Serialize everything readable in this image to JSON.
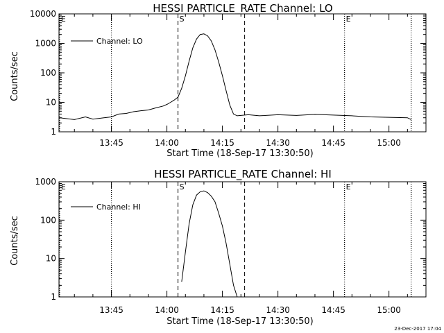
{
  "footer": {
    "timestamp": "23-Dec-2017 17:04"
  },
  "chart_data": [
    {
      "type": "line",
      "title": "HESSI PARTICLE_RATE Channel: LO",
      "xlabel": "Start Time (18-Sep-17 13:30:50)",
      "ylabel": "Counts/sec",
      "y_scale": "log",
      "ylim": [
        1,
        10000
      ],
      "y_tick_values": [
        1,
        10,
        100,
        1000,
        10000
      ],
      "y_tick_labels": [
        "1",
        "10",
        "100",
        "1000",
        "10000"
      ],
      "xlim": [
        "13:30:50",
        "15:10:00"
      ],
      "x_tick_values": [
        "13:45",
        "14:00",
        "14:15",
        "14:30",
        "14:45",
        "15:00"
      ],
      "x_tick_labels": [
        "13:45",
        "14:00",
        "14:15",
        "14:30",
        "14:45",
        "15:00"
      ],
      "legend": {
        "placement": "top-left",
        "entries": [
          "Channel: LO"
        ]
      },
      "markers": [
        {
          "label": "E",
          "time": "13:31",
          "style": "dotted"
        },
        {
          "label": "",
          "time": "13:45",
          "style": "dotted"
        },
        {
          "label": "S",
          "time": "14:03",
          "style": "dashed"
        },
        {
          "label": "",
          "time": "14:21",
          "style": "dashed"
        },
        {
          "label": "E",
          "time": "14:48",
          "style": "dotted"
        },
        {
          "label": "",
          "time": "15:06",
          "style": "dotted"
        }
      ],
      "series": [
        {
          "name": "Channel: LO",
          "x": [
            "13:31",
            "13:35",
            "13:38",
            "13:40",
            "13:43",
            "13:45",
            "13:47",
            "13:49",
            "13:51",
            "13:53",
            "13:55",
            "13:57",
            "13:59",
            "14:00",
            "14:01",
            "14:02",
            "14:03",
            "14:04",
            "14:05",
            "14:06",
            "14:07",
            "14:08",
            "14:09",
            "14:10",
            "14:11",
            "14:12",
            "14:13",
            "14:14",
            "14:15",
            "14:16",
            "14:17",
            "14:18",
            "14:19",
            "14:20",
            "14:22",
            "14:25",
            "14:30",
            "14:35",
            "14:40",
            "14:45",
            "14:50",
            "14:55",
            "15:00",
            "15:05",
            "15:06"
          ],
          "y": [
            3,
            2.6,
            3.2,
            2.7,
            3,
            3.2,
            4,
            4.2,
            4.8,
            5.2,
            5.5,
            6.5,
            7.5,
            8.5,
            10,
            12,
            15,
            30,
            80,
            250,
            700,
            1400,
            2000,
            2100,
            1800,
            1200,
            600,
            230,
            80,
            25,
            8,
            4,
            3.5,
            3.6,
            3.8,
            3.5,
            3.8,
            3.6,
            3.9,
            3.7,
            3.5,
            3.2,
            3.1,
            3,
            2.6
          ]
        }
      ]
    },
    {
      "type": "line",
      "title": "HESSI PARTICLE_RATE Channel: HI",
      "xlabel": "Start Time (18-Sep-17 13:30:50)",
      "ylabel": "Counts/sec",
      "y_scale": "log",
      "ylim": [
        1,
        1000
      ],
      "y_tick_values": [
        1,
        10,
        100,
        1000
      ],
      "y_tick_labels": [
        "1",
        "10",
        "100",
        "1000"
      ],
      "xlim": [
        "13:30:50",
        "15:10:00"
      ],
      "x_tick_values": [
        "13:45",
        "14:00",
        "14:15",
        "14:30",
        "14:45",
        "15:00"
      ],
      "x_tick_labels": [
        "13:45",
        "14:00",
        "14:15",
        "14:30",
        "14:45",
        "15:00"
      ],
      "legend": {
        "placement": "top-left",
        "entries": [
          "Channel: HI"
        ]
      },
      "markers": [
        {
          "label": "E",
          "time": "13:31",
          "style": "dotted"
        },
        {
          "label": "",
          "time": "13:45",
          "style": "dotted"
        },
        {
          "label": "S",
          "time": "14:03",
          "style": "dashed"
        },
        {
          "label": "",
          "time": "14:21",
          "style": "dashed"
        },
        {
          "label": "E",
          "time": "14:48",
          "style": "dotted"
        },
        {
          "label": "",
          "time": "15:06",
          "style": "dotted"
        }
      ],
      "series": [
        {
          "name": "Channel: HI",
          "x": [
            "14:04",
            "14:05",
            "14:06",
            "14:07",
            "14:08",
            "14:09",
            "14:10",
            "14:11",
            "14:12",
            "14:13",
            "14:14",
            "14:15",
            "14:16",
            "14:17",
            "14:18",
            "14:19"
          ],
          "y": [
            2.5,
            15,
            80,
            250,
            450,
            550,
            580,
            520,
            420,
            300,
            150,
            70,
            25,
            7,
            2,
            1
          ]
        }
      ]
    }
  ]
}
